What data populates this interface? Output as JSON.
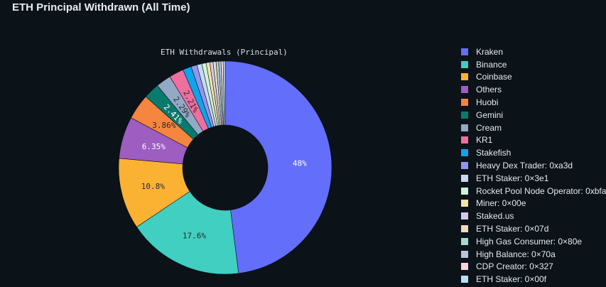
{
  "panel": {
    "title": "ETH Principal Withdrawn (All Time)"
  },
  "chart_data": {
    "type": "pie",
    "title": "ETH Withdrawals (Principal)",
    "hole": true,
    "legend_position": "right",
    "slices": [
      {
        "label": "Kraken",
        "value": 48,
        "color": "#636efa",
        "data_label": "48%"
      },
      {
        "label": "Binance",
        "value": 17.6,
        "color": "#40cfc0",
        "data_label": "17.6%"
      },
      {
        "label": "Coinbase",
        "value": 10.8,
        "color": "#fbb232",
        "data_label": "10.8%"
      },
      {
        "label": "Others",
        "value": 6.35,
        "color": "#9d5dc1",
        "data_label": "6.35%"
      },
      {
        "label": "Huobi",
        "value": 3.86,
        "color": "#f5853f",
        "data_label": "3.86%"
      },
      {
        "label": "Gemini",
        "value": 2.41,
        "color": "#097a6e",
        "data_label": "2.41%"
      },
      {
        "label": "Cream",
        "value": 2.29,
        "color": "#93a9c6",
        "data_label": "2.29%"
      },
      {
        "label": "KR1",
        "value": 2.21,
        "color": "#ef6ea0",
        "data_label": "2.21%"
      },
      {
        "label": "Stakefish",
        "value": 1.3,
        "color": "#0ea4e9",
        "data_label": ""
      },
      {
        "label": "Heavy Dex Trader: 0xa3d",
        "value": 0.9,
        "color": "#8f96f0",
        "data_label": ""
      },
      {
        "label": "ETH Staker: 0×3e1",
        "value": 0.75,
        "color": "#c9d8f2",
        "data_label": ""
      },
      {
        "label": "Rocket Pool Node Operator: 0xbfa",
        "value": 0.65,
        "color": "#cbf4dd",
        "data_label": ""
      },
      {
        "label": "Miner: 0×00e",
        "value": 0.55,
        "color": "#f5e3a6",
        "data_label": ""
      },
      {
        "label": "Staked.us",
        "value": 0.5,
        "color": "#d4c9ea",
        "data_label": ""
      },
      {
        "label": "ETH Staker: 0×07d",
        "value": 0.45,
        "color": "#f4d7c1",
        "data_label": ""
      },
      {
        "label": "High Gas Consumer: 0×80e",
        "value": 0.4,
        "color": "#a5d8d2",
        "data_label": ""
      },
      {
        "label": "High Balance: 0×70a",
        "value": 0.35,
        "color": "#b7c4df",
        "data_label": ""
      },
      {
        "label": "CDP Creator: 0×327",
        "value": 0.33,
        "color": "#f7d3dc",
        "data_label": ""
      },
      {
        "label": "ETH Staker: 0×00f",
        "value": 0.3,
        "color": "#b9dff3",
        "data_label": ""
      }
    ]
  }
}
